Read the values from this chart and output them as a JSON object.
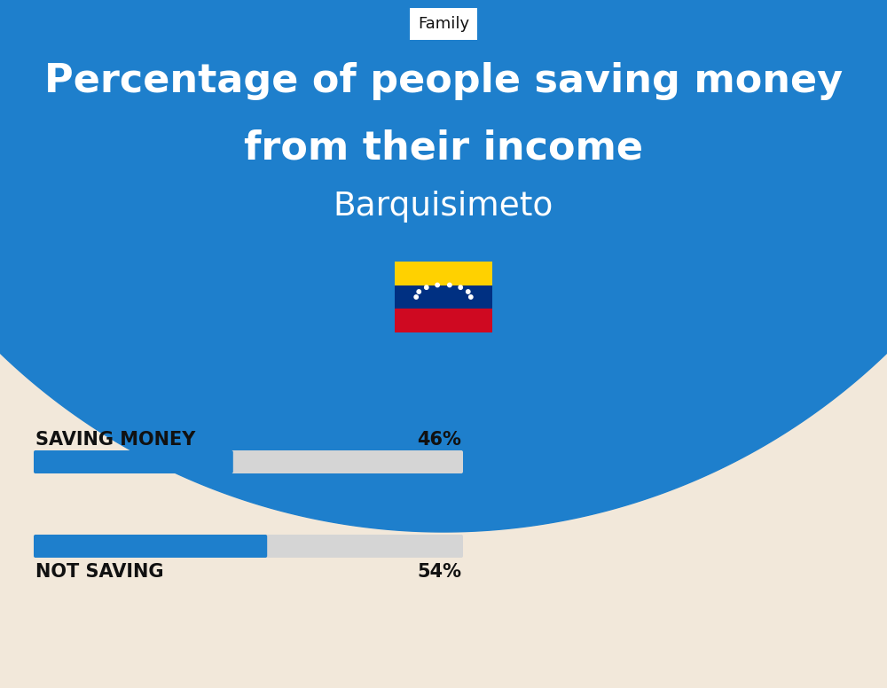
{
  "title_line1": "Percentage of people saving money",
  "title_line2": "from their income",
  "subtitle": "Barquisimeto",
  "category_label": "Family",
  "bg_color": "#F2E8DA",
  "blue_bg": "#1E7FCC",
  "bar_color": "#1E7FCC",
  "bar_bg_color": "#D5D5D5",
  "label1": "SAVING MONEY",
  "value1": 46,
  "label1_pct": "46%",
  "label2": "NOT SAVING",
  "value2": 54,
  "label2_pct": "54%",
  "text_color": "#111111",
  "white": "#FFFFFF",
  "flag_yellow": "#FFD100",
  "flag_blue": "#003082",
  "flag_red": "#CF0921"
}
